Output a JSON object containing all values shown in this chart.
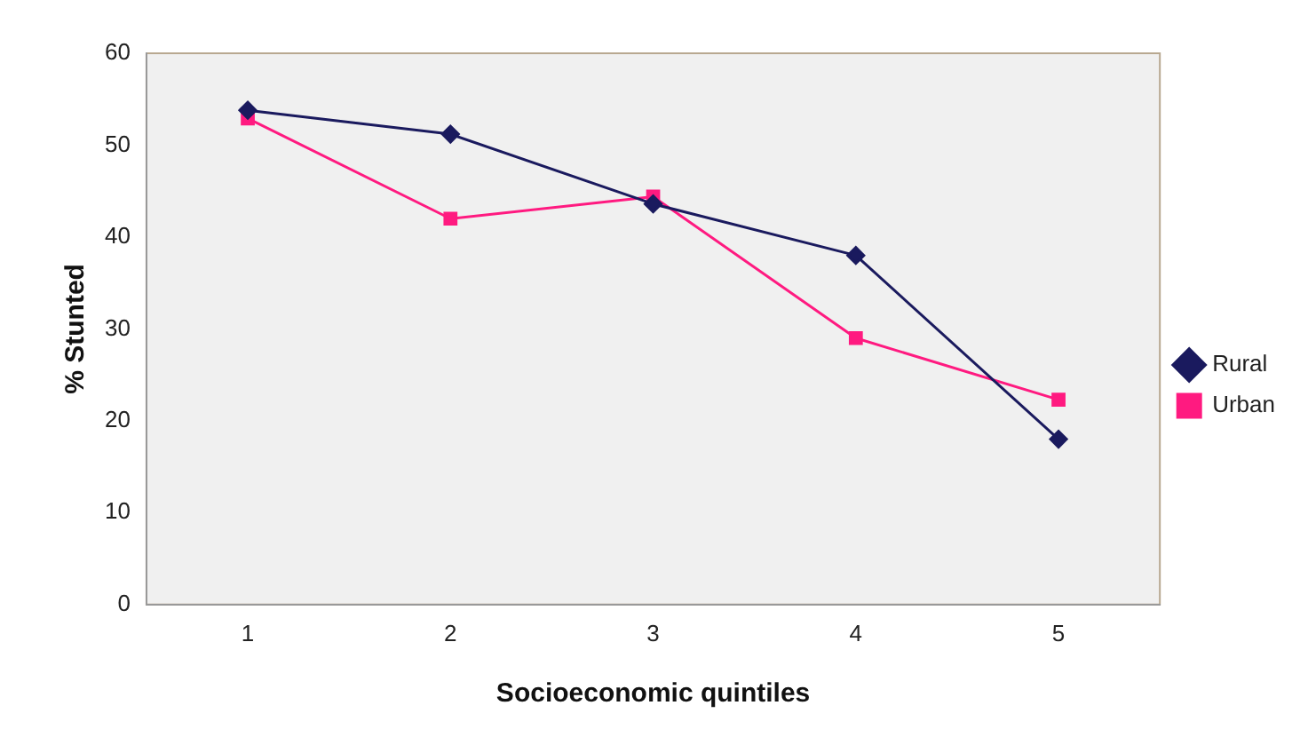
{
  "chart_data": {
    "type": "line",
    "xlabel": "Socioeconomic quintiles",
    "ylabel": "% Stunted",
    "categories": [
      "1",
      "2",
      "3",
      "4",
      "5"
    ],
    "series": [
      {
        "name": "Rural",
        "color": "#1a1a5e",
        "marker": "diamond",
        "values": [
          53.8,
          51.2,
          43.6,
          38,
          18
        ]
      },
      {
        "name": "Urban",
        "color": "#ff1a80",
        "marker": "square",
        "values": [
          52.9,
          42,
          44.4,
          29,
          22.3
        ]
      }
    ],
    "ylim": [
      0,
      60
    ],
    "yticks": [
      0,
      10,
      20,
      30,
      40,
      50,
      60
    ],
    "grid": false,
    "legend": "right"
  }
}
